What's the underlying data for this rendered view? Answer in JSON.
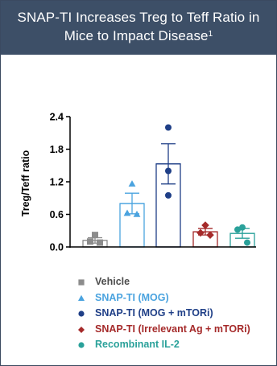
{
  "header": {
    "title_line1": "SNAP-TI Increases Treg to Teff Ratio in",
    "title_line2": "Mice to Impact Disease",
    "footnote": "1"
  },
  "chart_data": {
    "type": "bar",
    "ylabel": "Treg/Teff ratio",
    "ylim": [
      0,
      2.4
    ],
    "yticks": [
      "0.0",
      "0.6",
      "1.2",
      "1.8",
      "2.4"
    ],
    "ytick_values": [
      0,
      0.6,
      1.2,
      1.8,
      2.4
    ],
    "categories": [
      "Vehicle",
      "SNAP-TI (MOG)",
      "SNAP-TI (MOG + mTORi)",
      "SNAP-TI (Irrelevant Ag + mTORi)",
      "Recombinant IL-2"
    ],
    "series": [
      {
        "name": "Vehicle",
        "value": 0.12,
        "error": 0.05,
        "points": [
          0.22,
          0.1,
          0.08
        ],
        "marker": "square",
        "color": "#8c8c8c"
      },
      {
        "name": "SNAP-TI (MOG)",
        "value": 0.8,
        "error": 0.19,
        "points": [
          1.16,
          0.62,
          0.6
        ],
        "marker": "triangle",
        "color": "#4aa3df"
      },
      {
        "name": "SNAP-TI (MOG + mTORi)",
        "value": 1.53,
        "error": 0.37,
        "points": [
          2.2,
          1.4,
          0.95
        ],
        "marker": "circle",
        "color": "#1f3f87"
      },
      {
        "name": "SNAP-TI (Irrelevant Ag + mTORi)",
        "value": 0.28,
        "error": 0.06,
        "points": [
          0.4,
          0.26,
          0.22
        ],
        "marker": "diamond",
        "color": "#a52a2a"
      },
      {
        "name": "Recombinant IL-2",
        "value": 0.25,
        "error": 0.09,
        "points": [
          0.36,
          0.32,
          0.08
        ],
        "marker": "circle",
        "color": "#2aa19a"
      }
    ],
    "legend_position": "bottom"
  }
}
